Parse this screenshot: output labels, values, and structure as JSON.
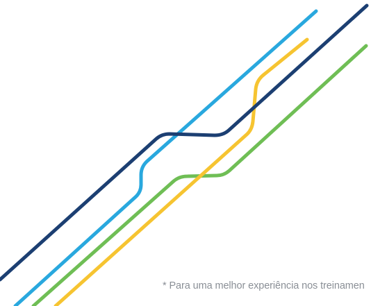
{
  "footnote": "* Para uma melhor experiência nos treinamen",
  "decoration": {
    "lines": [
      {
        "name": "navy",
        "color": "#1c3f72"
      },
      {
        "name": "light-blue",
        "color": "#29a8de"
      },
      {
        "name": "yellow",
        "color": "#f6c431"
      },
      {
        "name": "green",
        "color": "#6fbe55"
      }
    ]
  }
}
